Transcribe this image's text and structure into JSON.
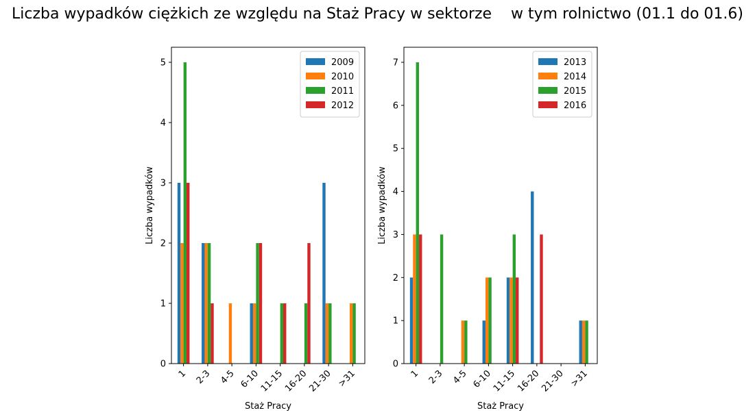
{
  "figure": {
    "suptitle": "Liczba wypadków ciężkich ze względu na Staż Pracy w sektorze    w tym rolnictwo (01.1 do 01.6)"
  },
  "colors": {
    "series": [
      "#1f77b4",
      "#ff7f0e",
      "#2ca02c",
      "#d62728"
    ]
  },
  "chart_data": [
    {
      "type": "bar",
      "title": "",
      "xlabel": "Staż Pracy",
      "ylabel": "Liczba wypadków",
      "categories": [
        "1",
        "2-3",
        "4-5",
        "6-10",
        "11-15",
        "16-20",
        "21-30",
        ">31"
      ],
      "ylim": [
        0,
        5.25
      ],
      "yticks": [
        0,
        1,
        2,
        3,
        4,
        5
      ],
      "legend": "top-right",
      "grid": false,
      "series": [
        {
          "name": "2009",
          "values": [
            3,
            2,
            0,
            1,
            0,
            0,
            3,
            0
          ]
        },
        {
          "name": "2010",
          "values": [
            2,
            2,
            1,
            1,
            0,
            0,
            1,
            1
          ]
        },
        {
          "name": "2011",
          "values": [
            5,
            2,
            0,
            2,
            1,
            1,
            1,
            1
          ]
        },
        {
          "name": "2012",
          "values": [
            3,
            1,
            0,
            2,
            1,
            2,
            0,
            0
          ]
        }
      ]
    },
    {
      "type": "bar",
      "title": "",
      "xlabel": "Staż Pracy",
      "ylabel": "Liczba wypadków",
      "categories": [
        "1",
        "2-3",
        "4-5",
        "6-10",
        "11-15",
        "16-20",
        "21-30",
        ">31"
      ],
      "ylim": [
        0,
        7.35
      ],
      "yticks": [
        0,
        1,
        2,
        3,
        4,
        5,
        6,
        7
      ],
      "legend": "top-right",
      "grid": false,
      "series": [
        {
          "name": "2013",
          "values": [
            2,
            0,
            0,
            1,
            2,
            4,
            0,
            1
          ]
        },
        {
          "name": "2014",
          "values": [
            3,
            0,
            1,
            2,
            2,
            0,
            0,
            1
          ]
        },
        {
          "name": "2015",
          "values": [
            7,
            3,
            1,
            2,
            3,
            0,
            0,
            1
          ]
        },
        {
          "name": "2016",
          "values": [
            3,
            0,
            0,
            0,
            2,
            3,
            0,
            0
          ]
        }
      ]
    }
  ]
}
